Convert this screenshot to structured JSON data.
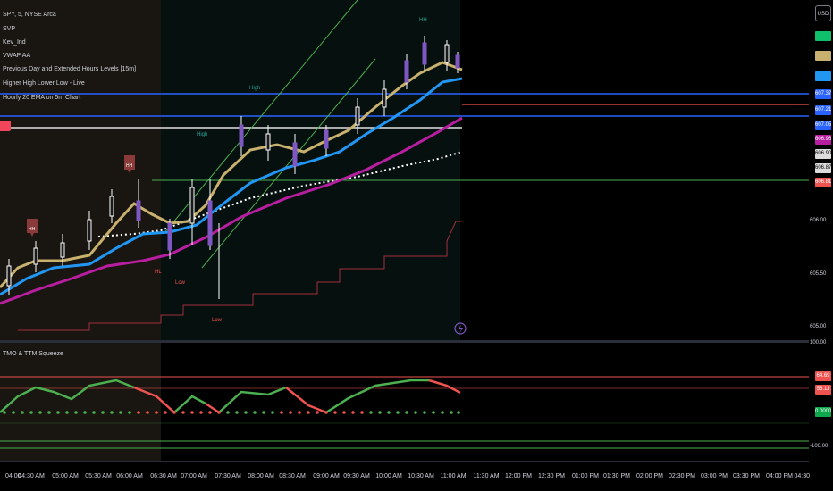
{
  "legend": {
    "symbol": "SPY, 5, NYSE Arca",
    "indicators": [
      "SVP",
      "Kev_Ind",
      "VWAP AA",
      "Previous Day and Extended Hours Levels [15m]",
      "Higher High Lower Low - Live",
      "Hourly 20 EMA on 5m Chart"
    ]
  },
  "oscillator": {
    "title": "TMO & TTM Squeeze"
  },
  "price_scale": {
    "currency": "USD",
    "labels": [
      "606.00",
      "605.50",
      "605.00"
    ],
    "tags": [
      {
        "text": "",
        "color": "#0fbf6c"
      },
      {
        "text": "",
        "color": "#c8b06e"
      },
      {
        "text": "",
        "color": "#2196f3"
      },
      {
        "text": "607.37",
        "color": "#2962ff"
      },
      {
        "text": "607.21",
        "color": "#2962ff"
      },
      {
        "text": "607.05",
        "color": "#2962ff"
      },
      {
        "text": "606.96",
        "color": "#b81ea0"
      },
      {
        "text": "606.90",
        "color": "#dcdcdc"
      },
      {
        "text": "606.87",
        "color": "#dcdcdc"
      },
      {
        "text": "606.81",
        "color": "#ef5350"
      }
    ],
    "osc_labels": [
      "100.00",
      "-100.00"
    ],
    "osc_tags": [
      {
        "text": "64.69",
        "color": "#ef5350"
      },
      {
        "text": "56.11",
        "color": "#ef5350"
      },
      {
        "text": "0.0000",
        "color": "#0fa84f"
      }
    ]
  },
  "time_axis": [
    "04:00",
    "04:30 AM",
    "05:00 AM",
    "05:30 AM",
    "06:00 AM",
    "06:30 AM",
    "07:00 AM",
    "07:30 AM",
    "08:00 AM",
    "08:30 AM",
    "09:00 AM",
    "09:30 AM",
    "10:00 AM",
    "10:30 AM",
    "11:00 AM",
    "11:30 AM",
    "12:00 PM",
    "12:30 PM",
    "01:00 PM",
    "01:30 PM",
    "02:00 PM",
    "02:30 PM",
    "03:00 PM",
    "03:30 PM",
    "04:00 PM",
    "04:30"
  ],
  "annotations": {
    "hh": "HH",
    "high": "High",
    "hl": "HL",
    "low": "Low"
  }
}
